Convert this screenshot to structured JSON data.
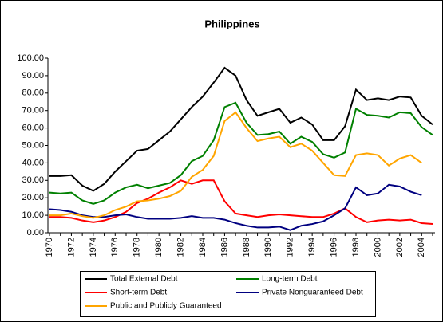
{
  "chart_data": {
    "type": "line",
    "title": "Philippines",
    "categories": [
      "1970",
      null,
      "1972",
      null,
      "1974",
      null,
      "1976",
      null,
      "1978",
      null,
      "1980",
      null,
      "1982",
      null,
      "1984",
      null,
      "1986",
      null,
      "1988",
      null,
      "1990",
      null,
      "1992",
      null,
      "1994",
      null,
      "1996",
      null,
      "1998",
      null,
      "2000",
      null,
      "2002",
      null,
      "2004",
      null
    ],
    "ylim": [
      0,
      100
    ],
    "yticks": [
      {
        "value": 0,
        "label": "0.00"
      },
      {
        "value": 10,
        "label": "10.00"
      },
      {
        "value": 20,
        "label": "20.00"
      },
      {
        "value": 30,
        "label": "30.00"
      },
      {
        "value": 40,
        "label": "40.00"
      },
      {
        "value": 50,
        "label": "50.00"
      },
      {
        "value": 60,
        "label": "60.00"
      },
      {
        "value": 70,
        "label": "70.00"
      },
      {
        "value": 80,
        "label": "80.00"
      },
      {
        "value": 90,
        "label": "90.00"
      },
      {
        "value": 100,
        "label": "100.00"
      }
    ],
    "grid": false,
    "legend": "bottom",
    "series": [
      {
        "name": "Total External Debt",
        "color": "#000000",
        "values": [
          32.5,
          32.5,
          33,
          27,
          24,
          28,
          35,
          41,
          47,
          48,
          53,
          58,
          65,
          72,
          78,
          86,
          94.5,
          90,
          76,
          67,
          69,
          71,
          63,
          66,
          62,
          53,
          53,
          61,
          82,
          76,
          77,
          76,
          78,
          77.5,
          67,
          62
        ]
      },
      {
        "name": "Long-term Debt",
        "color": "#008000",
        "values": [
          23,
          22.5,
          23,
          18.5,
          16.5,
          18.5,
          23,
          26,
          27.5,
          25.5,
          27,
          28.5,
          33,
          41,
          44,
          53,
          72,
          74.5,
          63,
          56,
          56.5,
          58,
          51,
          55,
          52,
          45,
          43,
          46,
          71,
          67.5,
          67,
          66,
          69,
          68.5,
          60.5,
          56
        ]
      },
      {
        "name": "Short-term Debt",
        "color": "#ff0000",
        "values": [
          9,
          9,
          8.5,
          7,
          6,
          7,
          9,
          12,
          17,
          19.5,
          23,
          26,
          30,
          28,
          30,
          30,
          18,
          11,
          10,
          9,
          10,
          10.5,
          10,
          9.5,
          9,
          9,
          11,
          14,
          9,
          6,
          7,
          7.5,
          7,
          7.5,
          5.5,
          5
        ]
      },
      {
        "name": "Private Nonguaranteed Debt",
        "color": "#000080",
        "values": [
          13.5,
          13,
          12,
          10,
          9,
          9,
          10,
          10.5,
          9,
          8,
          8,
          8,
          8.5,
          9.5,
          8.5,
          8.5,
          7.5,
          5.5,
          4,
          3,
          3,
          3.5,
          1.5,
          4,
          5,
          6.5,
          10,
          14,
          26,
          21.5,
          22.5,
          27.5,
          26.5,
          23.5,
          21.5,
          null
        ]
      },
      {
        "name": "Public and Publicly Guaranteed",
        "color": "#ffa500",
        "values": [
          10,
          10,
          11,
          9.5,
          8.5,
          10,
          13,
          15,
          18,
          18.5,
          19.5,
          21,
          24,
          32,
          36,
          44,
          64,
          69,
          60,
          52.5,
          54,
          55,
          49,
          51,
          47,
          40,
          33,
          32.5,
          44.5,
          45.5,
          44.5,
          38.5,
          42.5,
          44.5,
          40,
          null
        ]
      }
    ]
  }
}
